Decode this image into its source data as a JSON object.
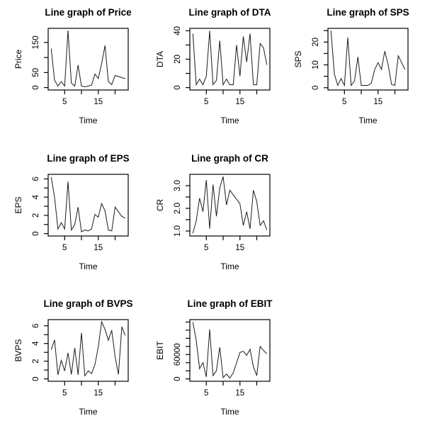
{
  "figure": {
    "background": "#ffffff",
    "text_color": "#000000",
    "line_color": "#1c1c1c",
    "axis_color": "#000000"
  },
  "chart_data": [
    {
      "type": "line",
      "title": "Line graph of Price",
      "xlabel": "Time",
      "ylabel": "Price",
      "x_start": 1,
      "values": [
        130,
        25,
        5,
        20,
        5,
        190,
        15,
        5,
        75,
        5,
        3,
        5,
        8,
        45,
        30,
        80,
        140,
        20,
        10,
        40,
        37,
        33,
        30
      ],
      "ylim": [
        -8,
        197
      ],
      "xlim": [
        0.1,
        23.9
      ],
      "yticks": [
        0,
        50,
        100,
        150
      ],
      "ytick_labels": [
        "0",
        "50",
        "",
        "150"
      ],
      "xticks": [
        5,
        10,
        15,
        20
      ],
      "xtick_labels": [
        "5",
        "",
        "15",
        ""
      ],
      "grid": false,
      "legend": null
    },
    {
      "type": "line",
      "title": "Line graph of DTA",
      "xlabel": "Time",
      "ylabel": "DTA",
      "x_start": 1,
      "values": [
        38,
        2,
        6,
        2,
        8,
        40,
        2,
        5,
        33,
        2,
        6,
        2,
        2,
        30,
        8,
        36,
        18,
        38,
        2,
        2,
        31,
        28,
        16
      ],
      "ylim": [
        -1.7,
        41.7
      ],
      "xlim": [
        0.1,
        23.9
      ],
      "yticks": [
        0,
        10,
        20,
        30,
        40
      ],
      "ytick_labels": [
        "0",
        "",
        "20",
        "",
        "40"
      ],
      "xticks": [
        5,
        10,
        15,
        20
      ],
      "xtick_labels": [
        "5",
        "",
        "15",
        ""
      ],
      "grid": false,
      "legend": null
    },
    {
      "type": "line",
      "title": "Line graph of SPS",
      "xlabel": "Time",
      "ylabel": "SPS",
      "x_start": 1,
      "values": [
        25,
        6,
        1,
        4,
        1,
        22,
        1,
        3,
        13.5,
        1,
        1,
        1,
        2,
        8,
        11,
        8,
        16,
        10,
        1.5,
        1,
        14,
        11,
        8
      ],
      "ylim": [
        -1,
        26
      ],
      "xlim": [
        0.1,
        23.9
      ],
      "yticks": [
        0,
        5,
        10,
        15,
        20,
        25
      ],
      "ytick_labels": [
        "0",
        "",
        "10",
        "",
        "20",
        ""
      ],
      "xticks": [
        5,
        10,
        15,
        20
      ],
      "xtick_labels": [
        "5",
        "",
        "15",
        ""
      ],
      "grid": false,
      "legend": null
    },
    {
      "type": "line",
      "title": "Line graph of EPS",
      "xlabel": "Time",
      "ylabel": "EPS",
      "x_start": 1,
      "values": [
        6.2,
        4.0,
        0.5,
        1.2,
        0.5,
        5.7,
        0.4,
        1.0,
        2.9,
        0.2,
        0.4,
        0.3,
        0.5,
        2.1,
        1.8,
        3.3,
        2.5,
        0.4,
        0.3,
        2.9,
        2.4,
        1.9,
        1.7
      ],
      "ylim": [
        -0.26,
        6.5
      ],
      "xlim": [
        0.1,
        23.9
      ],
      "yticks": [
        0,
        1,
        2,
        3,
        4,
        5,
        6
      ],
      "ytick_labels": [
        "0",
        "",
        "2",
        "",
        "4",
        "",
        "6"
      ],
      "xticks": [
        5,
        10,
        15,
        20
      ],
      "xtick_labels": [
        "5",
        "",
        "15",
        ""
      ],
      "grid": false,
      "legend": null
    },
    {
      "type": "line",
      "title": "Line graph of CR",
      "xlabel": "Time",
      "ylabel": "CR",
      "x_start": 1,
      "values": [
        0.9,
        1.45,
        2.45,
        1.85,
        3.25,
        1.1,
        3.05,
        1.65,
        2.9,
        3.4,
        2.15,
        2.8,
        2.6,
        2.4,
        2.2,
        1.25,
        1.85,
        1.1,
        2.8,
        2.3,
        1.25,
        1.45,
        1.05
      ],
      "ylim": [
        0.78,
        3.5
      ],
      "xlim": [
        0.1,
        23.9
      ],
      "yticks": [
        1.0,
        1.5,
        2.0,
        2.5,
        3.0
      ],
      "ytick_labels": [
        "1.0",
        "",
        "2.0",
        "",
        "3.0"
      ],
      "xticks": [
        5,
        10,
        15,
        20
      ],
      "xtick_labels": [
        "5",
        "",
        "15",
        ""
      ],
      "grid": false,
      "legend": null
    },
    {
      "type": "line",
      "title": "Line graph of BVPS",
      "xlabel": "Time",
      "ylabel": "BVPS",
      "x_start": 1,
      "values": [
        3.3,
        4.4,
        0.45,
        2.1,
        0.9,
        2.95,
        0.5,
        3.5,
        0.45,
        5.2,
        0.35,
        0.9,
        0.6,
        1.6,
        3.6,
        6.45,
        5.6,
        4.35,
        5.5,
        2.5,
        0.5,
        5.9,
        4.9
      ],
      "ylim": [
        -0.27,
        6.7
      ],
      "xlim": [
        0.1,
        23.9
      ],
      "yticks": [
        0,
        1,
        2,
        3,
        4,
        5,
        6
      ],
      "ytick_labels": [
        "0",
        "",
        "2",
        "",
        "4",
        "",
        "6"
      ],
      "xticks": [
        5,
        10,
        15,
        20
      ],
      "xtick_labels": [
        "5",
        "",
        "15",
        ""
      ],
      "grid": false,
      "legend": null
    },
    {
      "type": "line",
      "title": "Line graph of EBIT",
      "xlabel": "Time",
      "ylabel": "EBIT",
      "x_start": 1,
      "values": [
        140000,
        95000,
        25000,
        40000,
        5000,
        122000,
        8000,
        20000,
        78000,
        3000,
        12000,
        2000,
        15000,
        40000,
        65000,
        68000,
        58000,
        73000,
        30000,
        8000,
        80000,
        70000,
        62000
      ],
      "ylim": [
        -5800,
        146000
      ],
      "xlim": [
        0.1,
        23.9
      ],
      "yticks": [
        0,
        20000,
        40000,
        60000,
        80000,
        100000,
        120000,
        140000
      ],
      "ytick_labels": [
        "0",
        "",
        "",
        "60000",
        "",
        "",
        "",
        ""
      ],
      "xticks": [
        5,
        10,
        15,
        20
      ],
      "xtick_labels": [
        "5",
        "",
        "15",
        ""
      ],
      "grid": false,
      "legend": null
    }
  ]
}
